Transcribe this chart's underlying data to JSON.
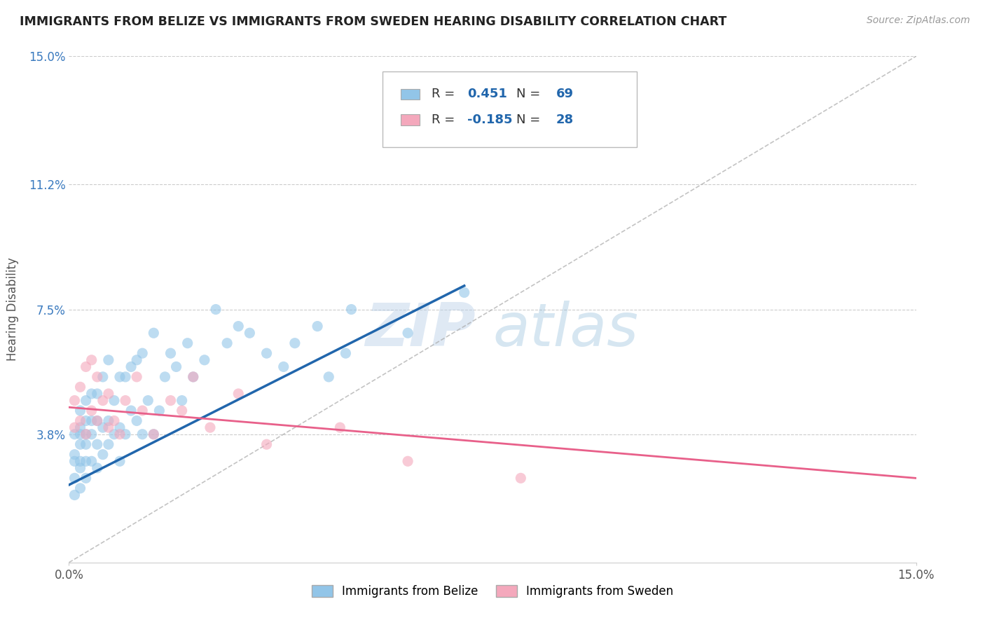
{
  "title": "IMMIGRANTS FROM BELIZE VS IMMIGRANTS FROM SWEDEN HEARING DISABILITY CORRELATION CHART",
  "source": "Source: ZipAtlas.com",
  "ylabel": "Hearing Disability",
  "legend_label_blue": "Immigrants from Belize",
  "legend_label_pink": "Immigrants from Sweden",
  "R_blue": 0.451,
  "N_blue": 69,
  "R_pink": -0.185,
  "N_pink": 28,
  "xlim": [
    0.0,
    0.15
  ],
  "ylim": [
    0.0,
    0.15
  ],
  "yticks": [
    0.038,
    0.075,
    0.112,
    0.15
  ],
  "ytick_labels": [
    "3.8%",
    "7.5%",
    "11.2%",
    "15.0%"
  ],
  "xticks": [
    0.0,
    0.15
  ],
  "xtick_labels": [
    "0.0%",
    "15.0%"
  ],
  "blue_color": "#92c5e8",
  "pink_color": "#f4a8bc",
  "trend_blue": "#2166ac",
  "trend_pink": "#e8608a",
  "trend_gray": "#aaaaaa",
  "watermark_zip": "ZIP",
  "watermark_atlas": "atlas",
  "blue_scatter_x": [
    0.001,
    0.001,
    0.001,
    0.001,
    0.001,
    0.002,
    0.002,
    0.002,
    0.002,
    0.002,
    0.002,
    0.002,
    0.003,
    0.003,
    0.003,
    0.003,
    0.003,
    0.003,
    0.004,
    0.004,
    0.004,
    0.004,
    0.005,
    0.005,
    0.005,
    0.005,
    0.006,
    0.006,
    0.006,
    0.007,
    0.007,
    0.007,
    0.008,
    0.008,
    0.009,
    0.009,
    0.009,
    0.01,
    0.01,
    0.011,
    0.011,
    0.012,
    0.012,
    0.013,
    0.013,
    0.014,
    0.015,
    0.015,
    0.016,
    0.017,
    0.018,
    0.019,
    0.02,
    0.021,
    0.022,
    0.024,
    0.026,
    0.028,
    0.03,
    0.032,
    0.035,
    0.038,
    0.04,
    0.044,
    0.046,
    0.049,
    0.05,
    0.06,
    0.07
  ],
  "blue_scatter_y": [
    0.02,
    0.025,
    0.03,
    0.032,
    0.038,
    0.022,
    0.028,
    0.03,
    0.035,
    0.038,
    0.04,
    0.045,
    0.025,
    0.03,
    0.035,
    0.038,
    0.042,
    0.048,
    0.03,
    0.038,
    0.042,
    0.05,
    0.028,
    0.035,
    0.042,
    0.05,
    0.032,
    0.04,
    0.055,
    0.035,
    0.042,
    0.06,
    0.038,
    0.048,
    0.03,
    0.04,
    0.055,
    0.038,
    0.055,
    0.045,
    0.058,
    0.042,
    0.06,
    0.038,
    0.062,
    0.048,
    0.038,
    0.068,
    0.045,
    0.055,
    0.062,
    0.058,
    0.048,
    0.065,
    0.055,
    0.06,
    0.075,
    0.065,
    0.07,
    0.068,
    0.062,
    0.058,
    0.065,
    0.07,
    0.055,
    0.062,
    0.075,
    0.068,
    0.08
  ],
  "pink_scatter_x": [
    0.001,
    0.001,
    0.002,
    0.002,
    0.003,
    0.003,
    0.004,
    0.004,
    0.005,
    0.005,
    0.006,
    0.007,
    0.007,
    0.008,
    0.009,
    0.01,
    0.012,
    0.013,
    0.015,
    0.018,
    0.02,
    0.022,
    0.025,
    0.03,
    0.035,
    0.048,
    0.06,
    0.08
  ],
  "pink_scatter_y": [
    0.04,
    0.048,
    0.042,
    0.052,
    0.038,
    0.058,
    0.045,
    0.06,
    0.042,
    0.055,
    0.048,
    0.05,
    0.04,
    0.042,
    0.038,
    0.048,
    0.055,
    0.045,
    0.038,
    0.048,
    0.045,
    0.055,
    0.04,
    0.05,
    0.035,
    0.04,
    0.03,
    0.025
  ],
  "blue_trend_x0": 0.0,
  "blue_trend_y0": 0.023,
  "blue_trend_x1": 0.07,
  "blue_trend_y1": 0.082,
  "pink_trend_x0": 0.0,
  "pink_trend_y0": 0.046,
  "pink_trend_x1": 0.15,
  "pink_trend_y1": 0.025
}
